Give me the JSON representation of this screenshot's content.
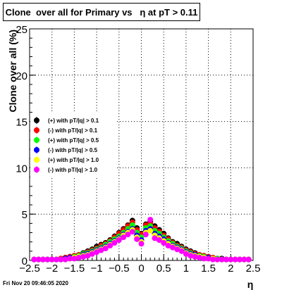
{
  "footer": {
    "date": "Fri Nov 20 09:46:05 2020"
  },
  "chart_data": {
    "type": "scatter",
    "title": "Clone  over all for Primary vs   η at pT > 0.11",
    "xlabel": "η",
    "ylabel": "Clone  over all (%)",
    "xlim": [
      -2.5,
      2.5
    ],
    "ylim": [
      0,
      25
    ],
    "x_ticks": [
      -2.5,
      -2,
      -1.5,
      -1,
      -0.5,
      0,
      0.5,
      1,
      1.5,
      2,
      2.5
    ],
    "x_tick_labels": [
      "−2.5",
      "−2",
      "−1.5",
      "−1",
      "−0.5",
      "0",
      "0.5",
      "1",
      "1.5",
      "2",
      "2.5"
    ],
    "y_ticks": [
      0,
      5,
      10,
      15,
      20,
      25
    ],
    "grid": true,
    "legend_position": "middle-left",
    "x": [
      -2.4,
      -2.3,
      -2.2,
      -2.1,
      -2.0,
      -1.9,
      -1.8,
      -1.7,
      -1.6,
      -1.5,
      -1.4,
      -1.3,
      -1.2,
      -1.1,
      -1.0,
      -0.9,
      -0.8,
      -0.7,
      -0.6,
      -0.5,
      -0.4,
      -0.3,
      -0.2,
      -0.1,
      0.0,
      0.1,
      0.2,
      0.3,
      0.4,
      0.5,
      0.6,
      0.7,
      0.8,
      0.9,
      1.0,
      1.1,
      1.2,
      1.3,
      1.4,
      1.5,
      1.6,
      1.7,
      1.8,
      1.9,
      2.0,
      2.1,
      2.2,
      2.3,
      2.4
    ],
    "series": [
      {
        "name": "(+) with pT/|q| > 0.1",
        "color": "#000000",
        "marker": "circle",
        "values": [
          0.1,
          0.1,
          0.1,
          0.1,
          0.1,
          0.1,
          0.2,
          0.3,
          0.4,
          0.5,
          0.6,
          0.8,
          1.0,
          1.2,
          1.5,
          1.7,
          1.9,
          2.2,
          2.6,
          3.0,
          3.4,
          3.8,
          4.3,
          3.5,
          2.9,
          3.9,
          4.2,
          3.7,
          3.3,
          2.9,
          2.4,
          2.0,
          1.8,
          1.5,
          1.2,
          1.0,
          0.8,
          0.6,
          0.5,
          0.4,
          0.3,
          0.2,
          0.2,
          0.1,
          0.1,
          0.1,
          0.1,
          0.1,
          0.1
        ]
      },
      {
        "name": "(-) with pT/|q| > 0.1",
        "color": "#ff0000",
        "marker": "circle",
        "values": [
          0.1,
          0.1,
          0.1,
          0.1,
          0.1,
          0.1,
          0.2,
          0.3,
          0.4,
          0.5,
          0.6,
          0.7,
          0.9,
          1.1,
          1.3,
          1.6,
          1.8,
          2.1,
          2.5,
          2.9,
          3.3,
          3.7,
          4.1,
          3.3,
          2.8,
          3.8,
          4.0,
          3.5,
          3.1,
          2.7,
          2.3,
          1.9,
          1.6,
          1.4,
          1.1,
          0.9,
          0.7,
          0.6,
          0.5,
          0.4,
          0.3,
          0.2,
          0.1,
          0.1,
          0.1,
          0.1,
          0.1,
          0.1,
          0.1
        ]
      },
      {
        "name": "(+) with pT/|q| > 0.5",
        "color": "#00ff00",
        "marker": "circle",
        "values": [
          0.1,
          0.1,
          0.1,
          0.1,
          0.1,
          0.1,
          0.1,
          0.2,
          0.3,
          0.4,
          0.5,
          0.7,
          0.8,
          1.0,
          1.2,
          1.4,
          1.7,
          2.0,
          2.3,
          2.6,
          3.0,
          3.4,
          3.8,
          3.0,
          2.5,
          3.5,
          3.7,
          3.2,
          2.9,
          2.5,
          2.1,
          1.8,
          1.5,
          1.3,
          1.0,
          0.8,
          0.6,
          0.5,
          0.4,
          0.3,
          0.2,
          0.2,
          0.1,
          0.1,
          0.1,
          0.1,
          0.1,
          0.1,
          0.1
        ]
      },
      {
        "name": "(-) with pT/|q| > 0.5",
        "color": "#0000ff",
        "marker": "circle",
        "values": [
          0.1,
          0.1,
          0.1,
          0.1,
          0.1,
          0.1,
          0.1,
          0.2,
          0.3,
          0.3,
          0.4,
          0.6,
          0.7,
          0.9,
          1.1,
          1.3,
          1.5,
          1.8,
          2.1,
          2.4,
          2.8,
          3.1,
          3.4,
          2.7,
          2.2,
          3.2,
          3.4,
          2.9,
          2.6,
          2.3,
          1.9,
          1.6,
          1.4,
          1.2,
          0.9,
          0.7,
          0.6,
          0.4,
          0.3,
          0.3,
          0.2,
          0.1,
          0.1,
          0.1,
          0.1,
          0.1,
          0.1,
          0.1,
          0.1
        ]
      },
      {
        "name": "(+) with pT/|q| > 1.0",
        "color": "#ffff00",
        "marker": "circle",
        "values": [
          0.1,
          0.1,
          0.1,
          0.1,
          0.1,
          0.1,
          0.1,
          0.1,
          0.2,
          0.3,
          0.4,
          0.5,
          0.6,
          0.8,
          1.0,
          1.2,
          1.4,
          1.7,
          2.0,
          2.3,
          2.7,
          3.0,
          3.3,
          2.5,
          2.0,
          3.0,
          3.2,
          2.7,
          2.4,
          2.1,
          1.8,
          1.5,
          1.3,
          1.1,
          0.8,
          0.6,
          0.5,
          0.4,
          0.3,
          0.2,
          0.2,
          0.1,
          0.1,
          0.1,
          0.1,
          0.1,
          0.1,
          0.1,
          0.1
        ]
      },
      {
        "name": "(-) with pT/|q| > 1.0",
        "color": "#ff00ff",
        "marker": "circle",
        "values": [
          0.1,
          0.1,
          0.1,
          0.1,
          0.1,
          0.1,
          0.1,
          0.1,
          0.2,
          0.2,
          0.3,
          0.4,
          0.5,
          0.7,
          0.9,
          1.1,
          1.3,
          1.6,
          1.9,
          2.2,
          2.5,
          2.8,
          3.1,
          2.3,
          1.8,
          2.8,
          4.4,
          2.4,
          2.2,
          1.9,
          1.6,
          1.4,
          1.2,
          1.0,
          0.7,
          0.5,
          0.4,
          0.3,
          0.2,
          0.2,
          0.1,
          0.1,
          0.1,
          0.1,
          0.1,
          0.1,
          0.1,
          0.1,
          0.1
        ]
      }
    ]
  }
}
